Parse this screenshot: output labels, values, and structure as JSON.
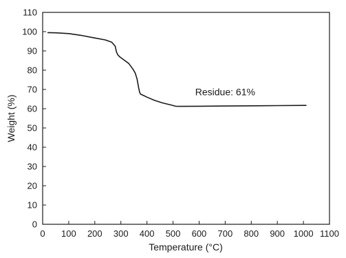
{
  "chart_data": {
    "type": "line",
    "title": "",
    "xlabel": "Temperature (°C)",
    "ylabel": "Weight (%)",
    "xlim": [
      0,
      1100
    ],
    "ylim": [
      0,
      110
    ],
    "x_ticks": [
      0,
      100,
      200,
      300,
      400,
      500,
      600,
      700,
      800,
      900,
      1000,
      1100
    ],
    "y_ticks": [
      0,
      10,
      20,
      30,
      40,
      50,
      60,
      70,
      80,
      90,
      100,
      110
    ],
    "grid": false,
    "legend": "none",
    "series": [
      {
        "x": [
          20,
          50,
          100,
          150,
          200,
          240,
          265,
          278,
          283,
          288,
          295,
          310,
          330,
          345,
          355,
          362,
          368,
          372,
          376,
          385,
          400,
          430,
          460,
          490,
          510,
          530,
          600,
          700,
          800,
          900,
          1010
        ],
        "y": [
          99.5,
          99.4,
          99.0,
          98.0,
          96.7,
          95.7,
          94.5,
          92.5,
          89.5,
          88.0,
          87.0,
          85.5,
          83.5,
          80.8,
          78.5,
          75.5,
          71.0,
          68.5,
          67.5,
          67.0,
          66.0,
          64.3,
          63.0,
          62.0,
          61.3,
          61.2,
          61.3,
          61.4,
          61.5,
          61.6,
          61.7
        ]
      }
    ],
    "annotations": [
      {
        "text": "Residue: 61%",
        "x": 700,
        "y": 67
      }
    ],
    "colors": {
      "line": "#1a1a1a",
      "axes": "#1a1a1a"
    }
  }
}
